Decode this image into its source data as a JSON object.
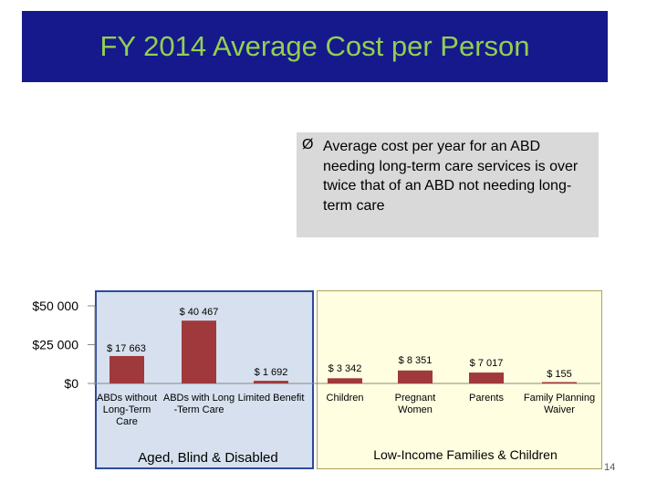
{
  "slide": {
    "title": "FY 2014 Average Cost per Person",
    "note_bullet": "Ø",
    "note_text": "Average cost per year for an ABD needing long-term care services is over twice that of an ABD not needing long-term care",
    "page_number": "14"
  },
  "colors": {
    "title_bg": "#16198c",
    "title_text": "#92d050",
    "bar": "#a0393c",
    "left_panel": "#d6e0ee",
    "right_panel": "#fffee0"
  },
  "chart_data": {
    "type": "bar",
    "categories": [
      "ABDs without Long-Term Care",
      "ABDs with Long -Term Care",
      "Limited Benefit",
      "Children",
      "Pregnant Women",
      "Parents",
      "Family Planning Waiver"
    ],
    "category_lines": [
      [
        "ABDs without",
        "Long-Term",
        "Care"
      ],
      [
        "ABDs with Long",
        "-Term Care"
      ],
      [
        "Limited Benefit"
      ],
      [
        "Children"
      ],
      [
        "Pregnant",
        "Women"
      ],
      [
        "Parents"
      ],
      [
        "Family Planning",
        "Waiver"
      ]
    ],
    "values": [
      17663,
      40467,
      1692,
      3342,
      8351,
      7017,
      155
    ],
    "data_labels": [
      "$ 17 663",
      "$ 40 467",
      "$ 1 692",
      "$ 3 342",
      "$ 8 351",
      "$ 7 017",
      "$ 155"
    ],
    "ylim": [
      0,
      50000
    ],
    "yticks": [
      0,
      25000,
      50000
    ],
    "ytick_labels": [
      "$0",
      "$25 000",
      "$50 000"
    ],
    "groups": [
      {
        "label": "Aged, Blind & Disabled",
        "categories": [
          0,
          1,
          2
        ]
      },
      {
        "label": "Low-Income Families & Children",
        "categories": [
          3,
          4,
          5,
          6
        ]
      }
    ]
  }
}
